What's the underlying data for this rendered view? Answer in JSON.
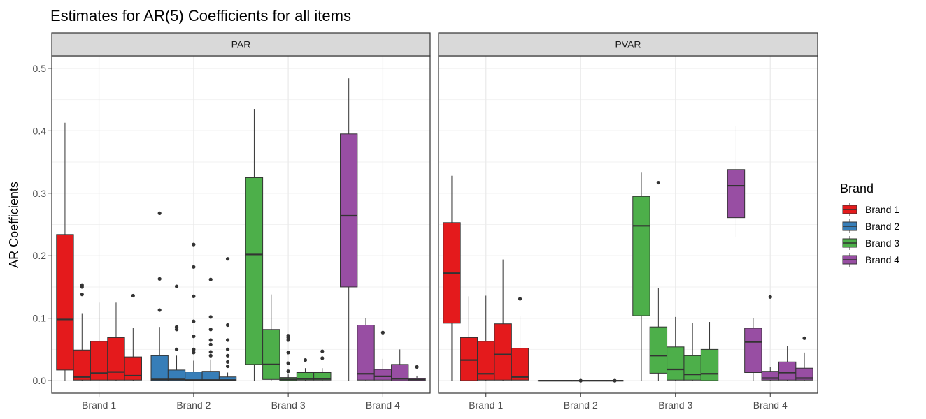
{
  "chart_data": {
    "type": "boxplot",
    "title": "Estimates for AR(5) Coefficients for all items",
    "ylabel": "AR Coefficients",
    "xlabel": "",
    "ylim": [
      -0.02,
      0.52
    ],
    "yticks": [
      0.0,
      0.1,
      0.2,
      0.3,
      0.4,
      0.5
    ],
    "ytick_labels": [
      "0.0",
      "0.1",
      "0.2",
      "0.3",
      "0.4",
      "0.5"
    ],
    "grid": true,
    "categories": [
      "Brand 1",
      "Brand 2",
      "Brand 3",
      "Brand 4"
    ],
    "legend": {
      "title": "Brand",
      "position": "right",
      "entries": [
        {
          "label": "Brand 1",
          "color": "#E41A1C"
        },
        {
          "label": "Brand 2",
          "color": "#377EB8"
        },
        {
          "label": "Brand 3",
          "color": "#4DAF4A"
        },
        {
          "label": "Brand 4",
          "color": "#984EA3"
        }
      ]
    },
    "panels": [
      {
        "label": "PAR",
        "groups": [
          {
            "brand": "Brand 1",
            "boxes": [
              {
                "min": 0.0,
                "q1": 0.017,
                "median": 0.098,
                "q3": 0.234,
                "max": 0.413,
                "outliers": []
              },
              {
                "min": 0.0,
                "q1": 0.001,
                "median": 0.006,
                "q3": 0.049,
                "max": 0.108,
                "outliers": [
                  0.138,
                  0.15,
                  0.153
                ]
              },
              {
                "min": 0.0,
                "q1": 0.001,
                "median": 0.012,
                "q3": 0.063,
                "max": 0.125,
                "outliers": []
              },
              {
                "min": 0.0,
                "q1": 0.001,
                "median": 0.014,
                "q3": 0.069,
                "max": 0.125,
                "outliers": []
              },
              {
                "min": 0.0,
                "q1": 0.001,
                "median": 0.008,
                "q3": 0.038,
                "max": 0.085,
                "outliers": [
                  0.136
                ]
              }
            ]
          },
          {
            "brand": "Brand 2",
            "boxes": [
              {
                "min": 0.0,
                "q1": 0.0,
                "median": 0.002,
                "q3": 0.04,
                "max": 0.086,
                "outliers": [
                  0.113,
                  0.163,
                  0.268
                ]
              },
              {
                "min": 0.0,
                "q1": 0.0,
                "median": 0.002,
                "q3": 0.017,
                "max": 0.04,
                "outliers": [
                  0.05,
                  0.082,
                  0.086,
                  0.151
                ]
              },
              {
                "min": 0.0,
                "q1": 0.0,
                "median": 0.001,
                "q3": 0.014,
                "max": 0.032,
                "outliers": [
                  0.045,
                  0.05,
                  0.071,
                  0.095,
                  0.135,
                  0.182,
                  0.218
                ]
              },
              {
                "min": 0.0,
                "q1": 0.0,
                "median": 0.001,
                "q3": 0.015,
                "max": 0.034,
                "outliers": [
                  0.04,
                  0.046,
                  0.058,
                  0.065,
                  0.082,
                  0.102,
                  0.162
                ]
              },
              {
                "min": 0.0,
                "q1": 0.0,
                "median": 0.001,
                "q3": 0.006,
                "max": 0.013,
                "outliers": [
                  0.023,
                  0.03,
                  0.04,
                  0.05,
                  0.065,
                  0.089,
                  0.195
                ]
              }
            ]
          },
          {
            "brand": "Brand 3",
            "boxes": [
              {
                "min": 0.0,
                "q1": 0.026,
                "median": 0.202,
                "q3": 0.325,
                "max": 0.435,
                "outliers": []
              },
              {
                "min": 0.0,
                "q1": 0.002,
                "median": 0.026,
                "q3": 0.082,
                "max": 0.138,
                "outliers": []
              },
              {
                "min": 0.0,
                "q1": 0.0,
                "median": 0.002,
                "q3": 0.005,
                "max": 0.01,
                "outliers": [
                  0.015,
                  0.028,
                  0.045,
                  0.065,
                  0.069,
                  0.072
                ]
              },
              {
                "min": 0.0,
                "q1": 0.001,
                "median": 0.003,
                "q3": 0.013,
                "max": 0.02,
                "outliers": [
                  0.033
                ]
              },
              {
                "min": 0.0,
                "q1": 0.001,
                "median": 0.003,
                "q3": 0.013,
                "max": 0.02,
                "outliers": [
                  0.036,
                  0.047
                ]
              }
            ]
          },
          {
            "brand": "Brand 4",
            "boxes": [
              {
                "min": 0.0,
                "q1": 0.15,
                "median": 0.264,
                "q3": 0.395,
                "max": 0.484,
                "outliers": []
              },
              {
                "min": 0.0,
                "q1": 0.001,
                "median": 0.011,
                "q3": 0.089,
                "max": 0.1,
                "outliers": []
              },
              {
                "min": 0.0,
                "q1": 0.001,
                "median": 0.007,
                "q3": 0.018,
                "max": 0.035,
                "outliers": [
                  0.077
                ]
              },
              {
                "min": 0.0,
                "q1": 0.0,
                "median": 0.003,
                "q3": 0.026,
                "max": 0.05,
                "outliers": []
              },
              {
                "min": 0.0,
                "q1": 0.0,
                "median": 0.002,
                "q3": 0.004,
                "max": 0.008,
                "outliers": [
                  0.022
                ]
              }
            ]
          }
        ]
      },
      {
        "label": "PVAR",
        "groups": [
          {
            "brand": "Brand 1",
            "boxes": [
              {
                "min": 0.0,
                "q1": 0.092,
                "median": 0.172,
                "q3": 0.253,
                "max": 0.328,
                "outliers": []
              },
              {
                "min": 0.0,
                "q1": 0.0,
                "median": 0.033,
                "q3": 0.069,
                "max": 0.135,
                "outliers": []
              },
              {
                "min": 0.0,
                "q1": 0.001,
                "median": 0.011,
                "q3": 0.063,
                "max": 0.136,
                "outliers": []
              },
              {
                "min": 0.0,
                "q1": 0.001,
                "median": 0.042,
                "q3": 0.091,
                "max": 0.194,
                "outliers": []
              },
              {
                "min": 0.0,
                "q1": 0.001,
                "median": 0.006,
                "q3": 0.052,
                "max": 0.103,
                "outliers": [
                  0.131
                ]
              }
            ]
          },
          {
            "brand": "Brand 2",
            "boxes": [
              {
                "min": 0.0,
                "q1": 0.0,
                "median": 0.0,
                "q3": 0.0,
                "max": 0.0,
                "outliers": []
              },
              {
                "min": 0.0,
                "q1": 0.0,
                "median": 0.0,
                "q3": 0.0,
                "max": 0.0,
                "outliers": []
              },
              {
                "min": 0.0,
                "q1": 0.0,
                "median": 0.0,
                "q3": 0.0,
                "max": 0.0,
                "outliers": [
                  0.0
                ]
              },
              {
                "min": 0.0,
                "q1": 0.0,
                "median": 0.0,
                "q3": 0.0,
                "max": 0.0,
                "outliers": []
              },
              {
                "min": 0.0,
                "q1": 0.0,
                "median": 0.0,
                "q3": 0.0,
                "max": 0.0,
                "outliers": [
                  0.0
                ]
              }
            ]
          },
          {
            "brand": "Brand 3",
            "boxes": [
              {
                "min": 0.0,
                "q1": 0.104,
                "median": 0.248,
                "q3": 0.295,
                "max": 0.333,
                "outliers": []
              },
              {
                "min": 0.0,
                "q1": 0.012,
                "median": 0.04,
                "q3": 0.086,
                "max": 0.148,
                "outliers": [
                  0.317
                ]
              },
              {
                "min": 0.0,
                "q1": 0.001,
                "median": 0.018,
                "q3": 0.054,
                "max": 0.102,
                "outliers": []
              },
              {
                "min": 0.0,
                "q1": 0.001,
                "median": 0.01,
                "q3": 0.04,
                "max": 0.092,
                "outliers": []
              },
              {
                "min": 0.0,
                "q1": 0.0,
                "median": 0.011,
                "q3": 0.05,
                "max": 0.094,
                "outliers": []
              }
            ]
          },
          {
            "brand": "Brand 4",
            "boxes": [
              {
                "min": 0.23,
                "q1": 0.261,
                "median": 0.312,
                "q3": 0.338,
                "max": 0.407,
                "outliers": []
              },
              {
                "min": 0.0,
                "q1": 0.013,
                "median": 0.062,
                "q3": 0.084,
                "max": 0.1,
                "outliers": []
              },
              {
                "min": 0.0,
                "q1": 0.001,
                "median": 0.004,
                "q3": 0.015,
                "max": 0.022,
                "outliers": [
                  0.134
                ]
              },
              {
                "min": 0.0,
                "q1": 0.001,
                "median": 0.013,
                "q3": 0.03,
                "max": 0.055,
                "outliers": []
              },
              {
                "min": 0.0,
                "q1": 0.001,
                "median": 0.004,
                "q3": 0.02,
                "max": 0.045,
                "outliers": [
                  0.068
                ]
              }
            ]
          }
        ]
      }
    ]
  }
}
